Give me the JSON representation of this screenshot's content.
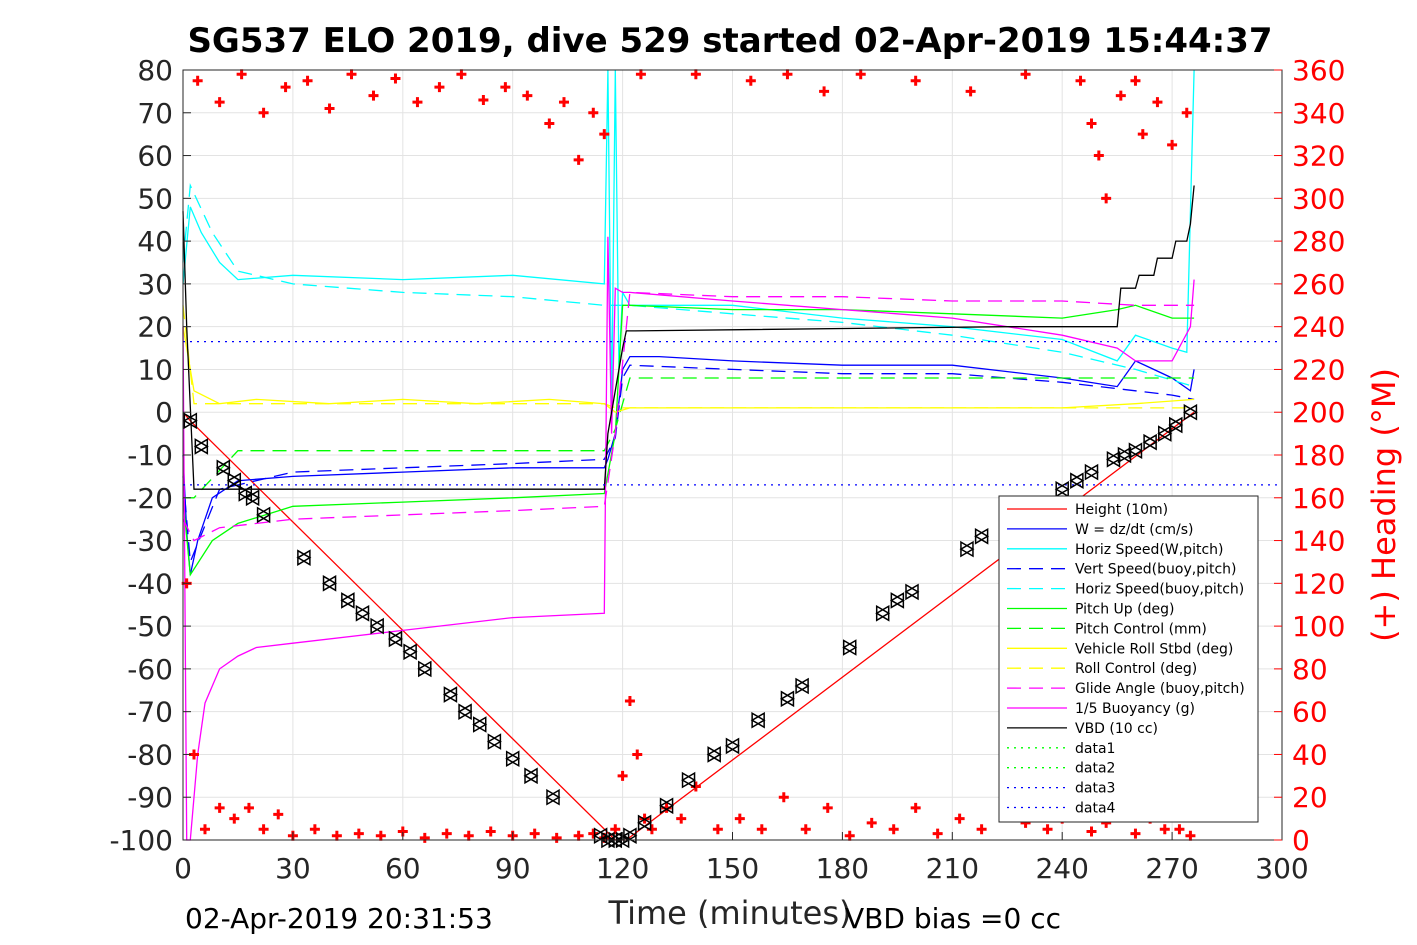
{
  "chart_data": {
    "type": "line",
    "title": "SG537 ELO 2019, dive 529 started 02-Apr-2019 15:44:37",
    "xlabel": "Time (minutes)",
    "ylabel": "",
    "y2label": "(+) Heading (°M)",
    "xlim": [
      0,
      300
    ],
    "ylim": [
      -100,
      80
    ],
    "y2lim": [
      0,
      360
    ],
    "xticks": [
      "0",
      "30",
      "60",
      "90",
      "120",
      "150",
      "180",
      "210",
      "240",
      "270",
      "300"
    ],
    "yticks": [
      "80",
      "70",
      "60",
      "50",
      "40",
      "30",
      "20",
      "10",
      "0",
      "-10",
      "-20",
      "-30",
      "-40",
      "-50",
      "-60",
      "-70",
      "-80",
      "-90",
      "-100"
    ],
    "y2ticks": [
      "360",
      "340",
      "320",
      "300",
      "280",
      "260",
      "240",
      "220",
      "200",
      "180",
      "160",
      "140",
      "120",
      "100",
      "80",
      "60",
      "40",
      "20",
      "0"
    ],
    "grid": true,
    "legend_position": "bottom-right",
    "footer_left": "02-Apr-2019 20:31:53",
    "footer_right": "VBD bias =0 cc",
    "series": [
      {
        "name": "Height (10m)",
        "color": "#ff0000",
        "style": "solid",
        "x": [
          0,
          2,
          118,
          121,
          276
        ],
        "y": [
          0,
          -2,
          -100,
          -100,
          0
        ]
      },
      {
        "name": "W = dz/dt (cm/s)",
        "color": "#0000ff",
        "style": "solid",
        "x": [
          0,
          1,
          2,
          4,
          8,
          15,
          30,
          60,
          90,
          115,
          116,
          118,
          120,
          122,
          130,
          150,
          180,
          210,
          240,
          255,
          260,
          270,
          275,
          276
        ],
        "y": [
          -10,
          -28,
          -38,
          -30,
          -20,
          -16,
          -15,
          -14,
          -13,
          -13,
          -11,
          -5,
          10,
          13,
          13,
          12,
          11,
          11,
          8,
          6,
          12,
          8,
          5,
          10
        ]
      },
      {
        "name": "Horiz Speed(W,pitch)",
        "color": "#00ffff",
        "style": "solid",
        "x": [
          0,
          2,
          5,
          10,
          15,
          30,
          60,
          90,
          115,
          116,
          117,
          118,
          119,
          120,
          122,
          150,
          180,
          210,
          240,
          255,
          260,
          270,
          274,
          276
        ],
        "y": [
          30,
          48,
          42,
          35,
          31,
          32,
          31,
          32,
          30,
          80,
          0,
          80,
          10,
          28,
          25,
          25,
          22,
          20,
          17,
          12,
          18,
          15,
          14,
          80
        ]
      },
      {
        "name": "Vert Speed(buoy,pitch)",
        "color": "#0000ff",
        "style": "dashed",
        "x": [
          0,
          2,
          10,
          30,
          60,
          90,
          115,
          118,
          120,
          122,
          150,
          180,
          210,
          240,
          260,
          270,
          276
        ],
        "y": [
          -15,
          -35,
          -18,
          -14,
          -13,
          -12,
          -11,
          -6,
          8,
          11,
          10,
          9,
          9,
          7,
          5,
          4,
          3
        ]
      },
      {
        "name": "Horiz Speed(buoy,pitch)",
        "color": "#00ffff",
        "style": "dashed",
        "x": [
          0,
          2,
          8,
          15,
          30,
          60,
          90,
          115,
          118,
          122,
          150,
          180,
          210,
          240,
          260,
          276
        ],
        "y": [
          35,
          53,
          42,
          33,
          30,
          28,
          27,
          25,
          25,
          25,
          23,
          21,
          18,
          14,
          10,
          6
        ]
      },
      {
        "name": "Pitch Up (deg)",
        "color": "#00ff00",
        "style": "solid",
        "x": [
          0,
          2,
          8,
          15,
          30,
          60,
          90,
          115,
          118,
          120,
          122,
          150,
          180,
          210,
          240,
          255,
          260,
          270,
          276
        ],
        "y": [
          -20,
          -38,
          -30,
          -26,
          -22,
          -21,
          -20,
          -19,
          -5,
          25,
          25,
          24,
          24,
          23,
          22,
          24,
          25,
          22,
          22
        ]
      },
      {
        "name": "Pitch Control (mm)",
        "color": "#00ff00",
        "style": "dashed",
        "x": [
          0,
          3,
          15,
          115,
          118,
          122,
          180,
          240,
          276
        ],
        "y": [
          -20,
          -20,
          -9,
          -9,
          -4,
          8,
          8,
          8,
          8
        ]
      },
      {
        "name": "Vehicle Roll Stbd (deg)",
        "color": "#ffff00",
        "style": "solid",
        "x": [
          0,
          3,
          10,
          20,
          40,
          60,
          80,
          100,
          115,
          118,
          122,
          150,
          180,
          210,
          240,
          260,
          276
        ],
        "y": [
          20,
          5,
          2,
          3,
          2,
          3,
          2,
          3,
          2,
          0,
          1,
          1,
          1,
          1,
          1,
          2,
          3
        ]
      },
      {
        "name": "Roll Control (deg)",
        "color": "#ffff00",
        "style": "dashed",
        "x": [
          0,
          3,
          115,
          118,
          276
        ],
        "y": [
          25,
          2,
          2,
          1,
          1
        ]
      },
      {
        "name": "Glide Angle (buoy,pitch)",
        "color": "#ff00ff",
        "style": "dashed",
        "x": [
          0,
          3,
          10,
          30,
          60,
          90,
          115,
          118,
          122,
          150,
          180,
          210,
          240,
          260,
          276
        ],
        "y": [
          -25,
          -30,
          -27,
          -25,
          -24,
          -23,
          -22,
          -5,
          28,
          27,
          27,
          26,
          26,
          25,
          25
        ]
      },
      {
        "name": "1/5 Buoyancy (g)",
        "color": "#ff00ff",
        "style": "solid",
        "x": [
          0,
          1,
          2,
          4,
          6,
          10,
          15,
          20,
          30,
          60,
          90,
          115,
          116,
          117,
          118,
          120,
          122,
          150,
          180,
          210,
          240,
          255,
          260,
          270,
          275,
          276
        ],
        "y": [
          20,
          -100,
          -100,
          -80,
          -68,
          -60,
          -57,
          -55,
          -54,
          -51,
          -48,
          -47,
          41,
          -5,
          29,
          28,
          28,
          26,
          24,
          22,
          18,
          15,
          12,
          12,
          20,
          31
        ]
      },
      {
        "name": "VBD (10 cc)",
        "color": "#000000",
        "style": "solid",
        "x": [
          0,
          1,
          3,
          115,
          116,
          120,
          121,
          122,
          225,
          226,
          250,
          255,
          256,
          260,
          261,
          265,
          266,
          270,
          271,
          274,
          275,
          276
        ],
        "y": [
          47,
          20,
          -18,
          -18,
          -5,
          15,
          19,
          19,
          20,
          20,
          20,
          20,
          29,
          29,
          32,
          32,
          36,
          36,
          40,
          40,
          44,
          53
        ]
      },
      {
        "name": "data1",
        "color": "#00ff00",
        "style": "dotted",
        "x": [],
        "y": []
      },
      {
        "name": "data2",
        "color": "#00ff00",
        "style": "dotted",
        "x": [],
        "y": []
      },
      {
        "name": "data3",
        "color": "#0000ff",
        "style": "dotted",
        "x": [
          0,
          300
        ],
        "y": [
          16.5,
          16.5
        ]
      },
      {
        "name": "data4",
        "color": "#0000ff",
        "style": "dotted",
        "x": [
          0,
          300
        ],
        "y": [
          -17,
          -17
        ]
      }
    ],
    "heading_series": {
      "name": "(+) Heading",
      "color": "#ff0000",
      "marker": "+",
      "x": [
        1,
        3,
        6,
        10,
        14,
        18,
        22,
        26,
        30,
        36,
        42,
        48,
        54,
        60,
        66,
        72,
        78,
        84,
        90,
        96,
        102,
        108,
        112,
        115,
        118,
        120,
        122,
        124,
        126,
        128,
        132,
        136,
        140,
        146,
        152,
        158,
        164,
        170,
        176,
        182,
        188,
        194,
        200,
        206,
        212,
        218,
        224,
        230,
        236,
        240,
        244,
        248,
        252,
        256,
        260,
        264,
        268,
        272,
        275
      ],
      "y": [
        120,
        40,
        5,
        15,
        10,
        15,
        5,
        12,
        2,
        5,
        2,
        3,
        2,
        4,
        1,
        3,
        2,
        4,
        2,
        3,
        1,
        2,
        3,
        1,
        5,
        30,
        65,
        40,
        10,
        5,
        15,
        10,
        25,
        5,
        10,
        5,
        20,
        5,
        15,
        2,
        8,
        5,
        15,
        3,
        10,
        5,
        20,
        8,
        5,
        10,
        12,
        4,
        8,
        12,
        3,
        10,
        5,
        5,
        2
      ]
    },
    "heading_top_series": {
      "color": "#ff0000",
      "marker": "+",
      "x": [
        4,
        10,
        16,
        22,
        28,
        34,
        40,
        46,
        52,
        58,
        64,
        70,
        76,
        82,
        88,
        94,
        100,
        104,
        108,
        112,
        115,
        125,
        140,
        155,
        165,
        175,
        185,
        200,
        215,
        230,
        245,
        248,
        250,
        252,
        256,
        260,
        262,
        266,
        270,
        274
      ],
      "y": [
        355,
        345,
        358,
        340,
        352,
        355,
        342,
        358,
        348,
        356,
        345,
        352,
        358,
        346,
        352,
        348,
        335,
        345,
        318,
        340,
        330,
        358,
        358,
        355,
        358,
        350,
        358,
        355,
        350,
        358,
        355,
        335,
        320,
        300,
        348,
        355,
        330,
        345,
        325,
        340
      ]
    },
    "depth_markers": {
      "color": "#000000",
      "marker": "triangle",
      "x": [
        2,
        5,
        11,
        14,
        17,
        19,
        22,
        33,
        40,
        45,
        49,
        53,
        58,
        62,
        66,
        73,
        77,
        81,
        85,
        90,
        95,
        101,
        114,
        116,
        118,
        120,
        122,
        126,
        132,
        138,
        145,
        150,
        157,
        165,
        169,
        182,
        191,
        195,
        199,
        214,
        218,
        240,
        244,
        248,
        254,
        257,
        260,
        264,
        268,
        271,
        275
      ],
      "y": [
        -2,
        -8,
        -13,
        -16,
        -19,
        -20,
        -24,
        -34,
        -40,
        -44,
        -47,
        -50,
        -53,
        -56,
        -60,
        -66,
        -70,
        -73,
        -77,
        -81,
        -85,
        -90,
        -99,
        -100,
        -100,
        -100,
        -99,
        -96,
        -92,
        -86,
        -80,
        -78,
        -72,
        -67,
        -64,
        -55,
        -47,
        -44,
        -42,
        -32,
        -29,
        -18,
        -16,
        -14,
        -11,
        -10,
        -9,
        -7,
        -5,
        -3,
        0
      ]
    }
  }
}
